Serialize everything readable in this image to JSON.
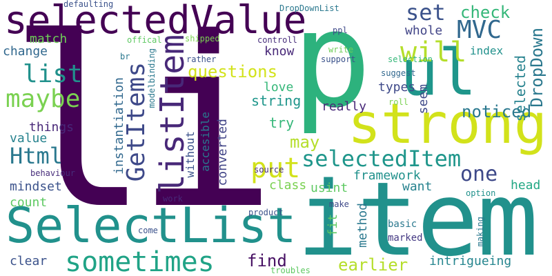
{
  "words": [
    {
      "text": "li",
      "color": "#440154",
      "vertical": false
    },
    {
      "text": "p",
      "color": "#2db27d",
      "vertical": false
    },
    {
      "text": "item",
      "color": "#21918c",
      "vertical": false
    },
    {
      "text": "strong",
      "color": "#d2e21b",
      "vertical": false
    },
    {
      "text": "SelectList",
      "color": "#21918c",
      "vertical": false
    },
    {
      "text": "selectedValue",
      "color": "#440154",
      "vertical": false
    },
    {
      "text": "ul",
      "color": "#1f968b",
      "vertical": false
    },
    {
      "text": "listItem",
      "color": "#482878",
      "vertical": true
    },
    {
      "text": "sometimes",
      "color": "#20a386",
      "vertical": false
    },
    {
      "text": "GetItems",
      "color": "#3e4989",
      "vertical": true
    },
    {
      "text": "put",
      "color": "#d2e21b",
      "vertical": false
    },
    {
      "text": "selectedItem",
      "color": "#1f968b",
      "vertical": false
    },
    {
      "text": "maybe",
      "color": "#7ad151",
      "vertical": false
    },
    {
      "text": "list",
      "color": "#21918c",
      "vertical": false
    },
    {
      "text": "Html",
      "color": "#2a788e",
      "vertical": false
    },
    {
      "text": "will",
      "color": "#b5de2b",
      "vertical": false
    },
    {
      "text": "MVC",
      "color": "#31688e",
      "vertical": false
    },
    {
      "text": "set",
      "color": "#3b528b",
      "vertical": false
    },
    {
      "text": "one",
      "color": "#3e4989",
      "vertical": false
    },
    {
      "text": "earlier",
      "color": "#b5de2b",
      "vertical": false
    },
    {
      "text": "find",
      "color": "#471063",
      "vertical": false
    },
    {
      "text": "questions",
      "color": "#d2e21b",
      "vertical": false
    },
    {
      "text": "check",
      "color": "#35b779",
      "vertical": false
    },
    {
      "text": "DropDown",
      "color": "#2a788e",
      "vertical": true
    },
    {
      "text": "noticed",
      "color": "#2a788e",
      "vertical": false
    },
    {
      "text": "selected",
      "color": "#26828e",
      "vertical": true
    },
    {
      "text": "may",
      "color": "#b5de2b",
      "vertical": false
    },
    {
      "text": "class",
      "color": "#7ad151",
      "vertical": false
    },
    {
      "text": "framework",
      "color": "#21918c",
      "vertical": false
    },
    {
      "text": "want",
      "color": "#26828e",
      "vertical": false
    },
    {
      "text": "head",
      "color": "#23a884",
      "vertical": false
    },
    {
      "text": "instantiation",
      "color": "#31688e",
      "vertical": true
    },
    {
      "text": "converted",
      "color": "#414487",
      "vertical": true
    },
    {
      "text": "accesible",
      "color": "#2a788e",
      "vertical": true
    },
    {
      "text": "without",
      "color": "#3b528b",
      "vertical": true
    },
    {
      "text": "string",
      "color": "#1f968b",
      "vertical": false
    },
    {
      "text": "love",
      "color": "#35b779",
      "vertical": false
    },
    {
      "text": "types",
      "color": "#3e4989",
      "vertical": false
    },
    {
      "text": "seem",
      "color": "#3e4989",
      "vertical": true
    },
    {
      "text": "really",
      "color": "#482878",
      "vertical": false
    },
    {
      "text": "try",
      "color": "#35b779",
      "vertical": false
    },
    {
      "text": "things",
      "color": "#482878",
      "vertical": false
    },
    {
      "text": "value",
      "color": "#26828e",
      "vertical": false
    },
    {
      "text": "mindset",
      "color": "#3b528b",
      "vertical": false
    },
    {
      "text": "count",
      "color": "#5ec962",
      "vertical": false
    },
    {
      "text": "change",
      "color": "#31688e",
      "vertical": false
    },
    {
      "text": "match",
      "color": "#6ece58",
      "vertical": false
    },
    {
      "text": "whole",
      "color": "#414487",
      "vertical": false
    },
    {
      "text": "know",
      "color": "#482878",
      "vertical": false
    },
    {
      "text": "index",
      "color": "#21918c",
      "vertical": false
    },
    {
      "text": "clear",
      "color": "#3b528b",
      "vertical": false
    },
    {
      "text": "usint",
      "color": "#5ec962",
      "vertical": false
    },
    {
      "text": "method",
      "color": "#2a788e",
      "vertical": true
    },
    {
      "text": "fit",
      "color": "#5ec962",
      "vertical": true
    },
    {
      "text": "intrigueing",
      "color": "#25858e",
      "vertical": false
    },
    {
      "text": "marked",
      "color": "#443983",
      "vertical": false
    },
    {
      "text": "basic",
      "color": "#2a788e",
      "vertical": false
    },
    {
      "text": "making",
      "color": "#2a788e",
      "vertical": true
    },
    {
      "text": "option",
      "color": "#21918c",
      "vertical": false
    },
    {
      "text": "source",
      "color": "#472d7b",
      "vertical": false
    },
    {
      "text": "product",
      "color": "#3b528b",
      "vertical": false
    },
    {
      "text": "make",
      "color": "#3e4989",
      "vertical": false
    },
    {
      "text": "come",
      "color": "#3b528b",
      "vertical": false
    },
    {
      "text": "work",
      "color": "#482878",
      "vertical": false
    },
    {
      "text": "behaviour",
      "color": "#472d7b",
      "vertical": false
    },
    {
      "text": "troubles",
      "color": "#5ec962",
      "vertical": false
    },
    {
      "text": "roll",
      "color": "#7ad151",
      "vertical": false
    },
    {
      "text": "suggest",
      "color": "#31688e",
      "vertical": false
    },
    {
      "text": "selection",
      "color": "#35b779",
      "vertical": false
    },
    {
      "text": "support",
      "color": "#3b528b",
      "vertical": false
    },
    {
      "text": "write",
      "color": "#6ece58",
      "vertical": false
    },
    {
      "text": "ppl",
      "color": "#3e4989",
      "vertical": false
    },
    {
      "text": "controll",
      "color": "#472d7b",
      "vertical": false
    },
    {
      "text": "rather",
      "color": "#3b528b",
      "vertical": false
    },
    {
      "text": "modelbinding",
      "color": "#2a788e",
      "vertical": true
    },
    {
      "text": "br",
      "color": "#2a788e",
      "vertical": false
    },
    {
      "text": "offical",
      "color": "#5ec962",
      "vertical": false
    },
    {
      "text": "shipped",
      "color": "#7ad151",
      "vertical": false
    },
    {
      "text": "defaulting",
      "color": "#3b528b",
      "vertical": false
    },
    {
      "text": "DropDownList",
      "color": "#2a788e",
      "vertical": false
    }
  ]
}
